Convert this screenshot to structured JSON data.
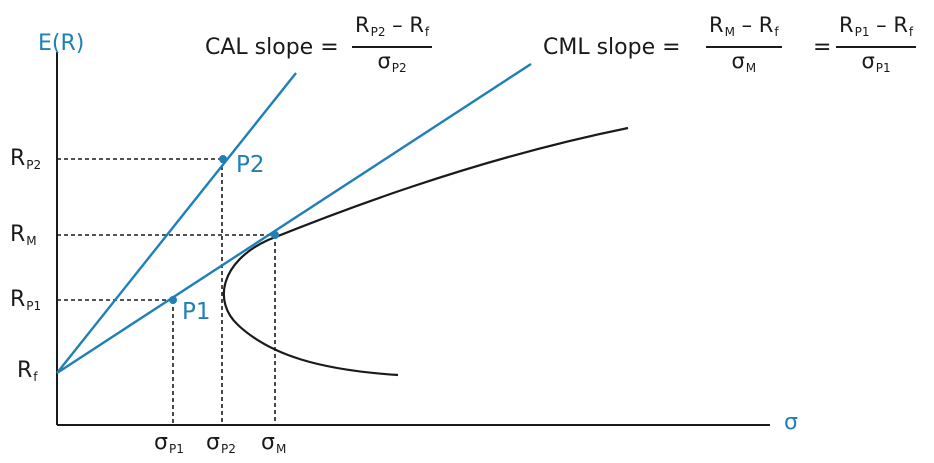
{
  "colors": {
    "line": "#1f7fb6",
    "curve": "#1a1a1a",
    "axis": "#1a1a1a",
    "label_blue": "#1f7fb6"
  },
  "axes": {
    "y_label": "E(R)",
    "x_label": "σ"
  },
  "y_ticks": {
    "rp2": {
      "main": "R",
      "sub": "P2"
    },
    "rm": {
      "main": "R",
      "sub": "M"
    },
    "rp1": {
      "main": "R",
      "sub": "P1"
    },
    "rf": {
      "main": "R",
      "sub": "f"
    }
  },
  "x_ticks": {
    "sp1": {
      "main": "σ",
      "sub": "P1"
    },
    "sp2": {
      "main": "σ",
      "sub": "P2"
    },
    "sm": {
      "main": "σ",
      "sub": "M"
    }
  },
  "points": {
    "p1": "P1",
    "p2": "P2"
  },
  "cal": {
    "label": "CAL slope =",
    "num_main": "R",
    "num_sub": "P2",
    "num_rest": " – R",
    "num_rest_sub": "f",
    "den_main": "σ",
    "den_sub": "P2"
  },
  "cml": {
    "label": "CML slope =",
    "f1_num_main": "R",
    "f1_num_sub": "M",
    "f1_num_rest": " – R",
    "f1_num_rest_sub": "f",
    "f1_den_main": "σ",
    "f1_den_sub": "M",
    "equals": "=",
    "f2_num_main": "R",
    "f2_num_sub": "P1",
    "f2_num_rest": " – R",
    "f2_num_rest_sub": "f",
    "f2_den_main": "σ",
    "f2_den_sub": "P1"
  }
}
